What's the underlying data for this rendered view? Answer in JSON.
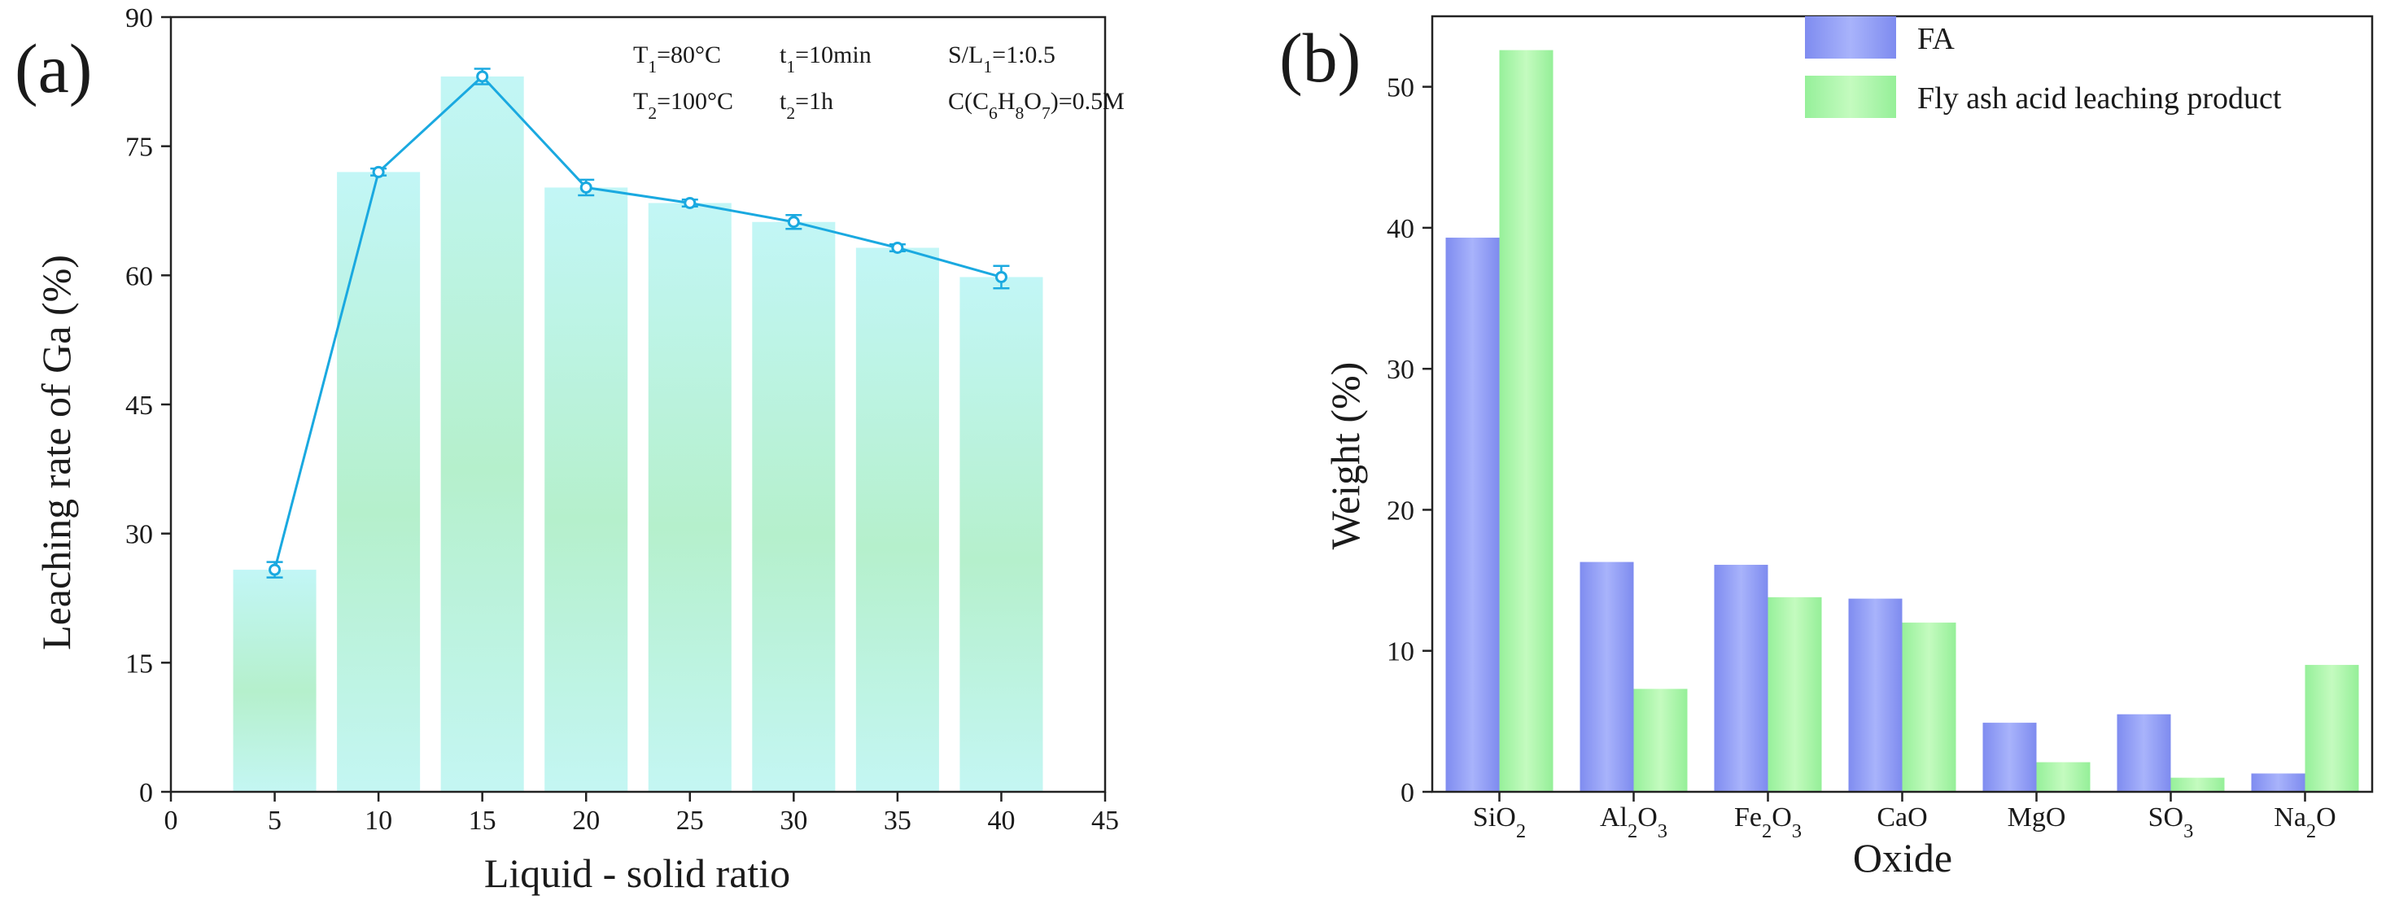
{
  "chart_data": [
    {
      "panel": "(a)",
      "type": "bar",
      "overlay": "line with error bars",
      "xlabel": "Liquid - solid ratio",
      "ylabel": "Leaching rate of Ga (%)",
      "xlim": [
        0,
        45
      ],
      "ylim": [
        0,
        90
      ],
      "xticks": [
        0,
        5,
        10,
        15,
        20,
        25,
        30,
        35,
        40,
        45
      ],
      "yticks": [
        0,
        15,
        30,
        45,
        60,
        75,
        90
      ],
      "x": [
        5,
        10,
        15,
        20,
        25,
        30,
        35,
        40
      ],
      "values": [
        25.8,
        72.0,
        83.1,
        70.2,
        68.4,
        66.2,
        63.2,
        59.8
      ],
      "errors": [
        0.9,
        0.4,
        0.9,
        0.9,
        0.4,
        0.8,
        0.4,
        1.3
      ],
      "annotations": [
        {
          "parts": [
            {
              "t": "T"
            },
            {
              "t": "1",
              "sub": true
            },
            {
              "t": "=80°C"
            }
          ],
          "col": 0,
          "row": 0
        },
        {
          "parts": [
            {
              "t": "t"
            },
            {
              "t": "1",
              "sub": true
            },
            {
              "t": "=10min"
            }
          ],
          "col": 1,
          "row": 0
        },
        {
          "parts": [
            {
              "t": "S/L"
            },
            {
              "t": "1",
              "sub": true
            },
            {
              "t": "=1:0.5"
            }
          ],
          "col": 2,
          "row": 0
        },
        {
          "parts": [
            {
              "t": "T"
            },
            {
              "t": "2",
              "sub": true
            },
            {
              "t": "=100°C"
            }
          ],
          "col": 0,
          "row": 1
        },
        {
          "parts": [
            {
              "t": "t"
            },
            {
              "t": "2",
              "sub": true
            },
            {
              "t": "=1h"
            }
          ],
          "col": 1,
          "row": 1
        },
        {
          "parts": [
            {
              "t": "C(C"
            },
            {
              "t": "6",
              "sub": true
            },
            {
              "t": "H"
            },
            {
              "t": "8",
              "sub": true
            },
            {
              "t": "O"
            },
            {
              "t": "7",
              "sub": true
            },
            {
              "t": ")=0.5M"
            }
          ],
          "col": 2,
          "row": 1
        }
      ],
      "colors": {
        "bar_top": "#bff4f5",
        "bar_mid": "#b7f0cf",
        "line": "#1aa9e0"
      }
    },
    {
      "panel": "(b)",
      "type": "bar",
      "xlabel": "Oxide",
      "ylabel": "Weight (%)",
      "ylim": [
        0,
        55
      ],
      "yticks": [
        0,
        10,
        20,
        30,
        40,
        50
      ],
      "categories": [
        [
          {
            "t": "SiO"
          },
          {
            "t": "2",
            "sub": true
          }
        ],
        [
          {
            "t": "Al"
          },
          {
            "t": "2",
            "sub": true
          },
          {
            "t": "O"
          },
          {
            "t": "3",
            "sub": true
          }
        ],
        [
          {
            "t": "Fe"
          },
          {
            "t": "2",
            "sub": true
          },
          {
            "t": "O"
          },
          {
            "t": "3",
            "sub": true
          }
        ],
        [
          {
            "t": "CaO"
          }
        ],
        [
          {
            "t": "MgO"
          }
        ],
        [
          {
            "t": "SO"
          },
          {
            "t": "3",
            "sub": true
          }
        ],
        [
          {
            "t": "Na"
          },
          {
            "t": "2",
            "sub": true
          },
          {
            "t": "O"
          }
        ]
      ],
      "series": [
        {
          "name": "FA",
          "values": [
            39.3,
            16.3,
            16.1,
            13.7,
            4.9,
            5.5,
            1.3
          ],
          "color": "#8c98f4"
        },
        {
          "name": "Fly ash acid leaching product",
          "values": [
            52.6,
            7.3,
            13.8,
            12.0,
            2.1,
            1.0,
            9.0
          ],
          "color": "#a6f5a6"
        }
      ],
      "legend": "top-right"
    }
  ]
}
